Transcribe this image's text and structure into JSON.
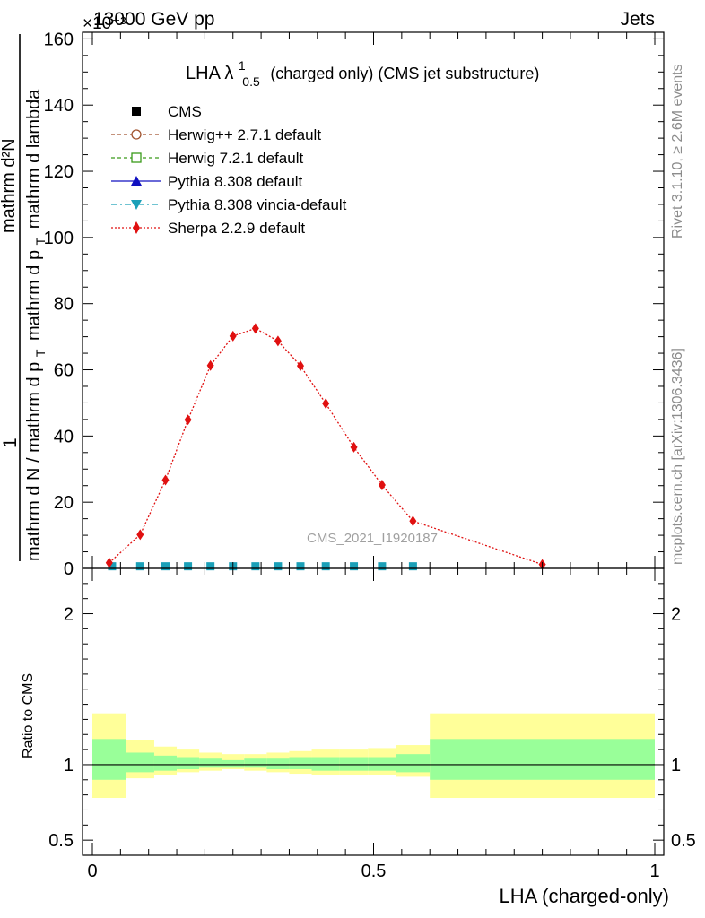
{
  "header": {
    "left_label": "13000 GeV pp",
    "right_label": "Jets",
    "exponent_label": "×10⁻³"
  },
  "side_notes": {
    "rivet": "Rivet 3.1.10, ≥ 2.6M events",
    "mcplots": "mcplots.cern.ch [arXiv:1306.3436]"
  },
  "colors": {
    "cms": "#000000",
    "herwigpp": "#a0522d",
    "herwig7": "#3a9a1a",
    "pythia": "#1010c0",
    "vincia": "#1aa0b8",
    "sherpa": "#e01010",
    "band_inner": "#99ff99",
    "band_outer": "#ffff99"
  },
  "chart_data": [
    {
      "type": "line",
      "title": "LHA λ¹₀.₅ (charged only) (CMS jet substructure)",
      "title_parts": {
        "main": "LHA λ",
        "sup": "1",
        "sub": "0.5",
        "rest": "(charged only) (CMS jet substructure)"
      },
      "watermark": "CMS_2021_I1920187",
      "ylabel": {
        "numerator": "mathrm d²N",
        "denominator_bottom": "mathrm d N / mathrm d p",
        "denominator_top": "mathrm d p",
        "sub_T": "T",
        "denominator_rest": "mathrm d lambda",
        "prefix": "1"
      },
      "xlim": [
        0,
        1
      ],
      "ylim": [
        0,
        0.162
      ],
      "yscale_factor": "1e-3",
      "ytick_values": [
        0,
        20,
        40,
        60,
        80,
        100,
        120,
        140,
        160
      ],
      "grid": false,
      "legend_position": "top-left",
      "series": [
        {
          "name": "CMS",
          "color": "#000000",
          "marker": "square",
          "x": [
            0.035,
            0.085,
            0.13,
            0.17,
            0.21,
            0.25,
            0.29,
            0.33,
            0.37,
            0.415,
            0.465,
            0.515,
            0.57
          ],
          "y": [
            0.0005,
            0.0005,
            0.0005,
            0.0005,
            0.0005,
            0.0005,
            0.0005,
            0.0005,
            0.0005,
            0.0005,
            0.0005,
            0.0005,
            0.0005
          ]
        },
        {
          "name": "Herwig++ 2.7.1 default",
          "color": "#a0522d",
          "marker": "circle-open",
          "x": [
            0.035,
            0.085,
            0.13,
            0.17,
            0.21,
            0.25,
            0.29,
            0.33,
            0.37,
            0.415,
            0.465,
            0.515,
            0.57
          ],
          "y": [
            0.0005,
            0.0005,
            0.0005,
            0.0005,
            0.0005,
            0.0005,
            0.0005,
            0.0005,
            0.0005,
            0.0005,
            0.0005,
            0.0005,
            0.0005
          ]
        },
        {
          "name": "Herwig 7.2.1 default",
          "color": "#3a9a1a",
          "marker": "square-open",
          "x": [
            0.035,
            0.085,
            0.13,
            0.17,
            0.21,
            0.25,
            0.29,
            0.33,
            0.37,
            0.415,
            0.465,
            0.515,
            0.57
          ],
          "y": [
            0.0005,
            0.0005,
            0.0005,
            0.0005,
            0.0005,
            0.0005,
            0.0005,
            0.0005,
            0.0005,
            0.0005,
            0.0005,
            0.0005,
            0.0005
          ]
        },
        {
          "name": "Pythia 8.308 default",
          "color": "#1010c0",
          "marker": "triangle-up",
          "x": [
            0.035,
            0.085,
            0.13,
            0.17,
            0.21,
            0.25,
            0.29,
            0.33,
            0.37,
            0.415,
            0.465,
            0.515,
            0.57
          ],
          "y": [
            0.0005,
            0.0005,
            0.0005,
            0.0005,
            0.0005,
            0.0005,
            0.0005,
            0.0005,
            0.0005,
            0.0005,
            0.0005,
            0.0005,
            0.0005
          ]
        },
        {
          "name": "Pythia 8.308 vincia-default",
          "color": "#1aa0b8",
          "marker": "triangle-down",
          "x": [
            0.035,
            0.085,
            0.13,
            0.17,
            0.21,
            0.25,
            0.29,
            0.33,
            0.37,
            0.415,
            0.465,
            0.515,
            0.57
          ],
          "y": [
            0.0005,
            0.0005,
            0.0005,
            0.0005,
            0.0005,
            0.0005,
            0.0005,
            0.0005,
            0.0005,
            0.0005,
            0.0005,
            0.0005,
            0.0005
          ]
        },
        {
          "name": "Sherpa 2.2.9 default",
          "color": "#e01010",
          "marker": "diamond",
          "x": [
            0.03,
            0.085,
            0.13,
            0.17,
            0.21,
            0.25,
            0.29,
            0.33,
            0.37,
            0.415,
            0.465,
            0.515,
            0.57,
            0.8
          ],
          "y": [
            0.0017,
            0.0102,
            0.0267,
            0.0449,
            0.0613,
            0.0702,
            0.0725,
            0.0687,
            0.0612,
            0.0498,
            0.0366,
            0.0252,
            0.0143,
            0.0012
          ]
        }
      ]
    },
    {
      "type": "area",
      "ylabel": "Ratio to CMS",
      "xlabel": "LHA (charged-only)",
      "xlim": [
        0,
        1
      ],
      "ylim": [
        0.4,
        2.3
      ],
      "ytick_values": [
        0.5,
        1,
        2
      ],
      "xtick_labels": [
        "0",
        "0.5",
        "1"
      ],
      "grid": false,
      "reference_line": 1,
      "bins": [
        {
          "lo": 0.0,
          "hi": 0.06,
          "inner": [
            0.9,
            1.17
          ],
          "outer": [
            0.78,
            1.34
          ]
        },
        {
          "lo": 0.06,
          "hi": 0.11,
          "inner": [
            0.95,
            1.08
          ],
          "outer": [
            0.91,
            1.16
          ]
        },
        {
          "lo": 0.11,
          "hi": 0.15,
          "inner": [
            0.96,
            1.06
          ],
          "outer": [
            0.93,
            1.12
          ]
        },
        {
          "lo": 0.15,
          "hi": 0.19,
          "inner": [
            0.97,
            1.05
          ],
          "outer": [
            0.95,
            1.1
          ]
        },
        {
          "lo": 0.19,
          "hi": 0.23,
          "inner": [
            0.98,
            1.04
          ],
          "outer": [
            0.96,
            1.08
          ]
        },
        {
          "lo": 0.23,
          "hi": 0.27,
          "inner": [
            0.98,
            1.03
          ],
          "outer": [
            0.97,
            1.07
          ]
        },
        {
          "lo": 0.27,
          "hi": 0.31,
          "inner": [
            0.98,
            1.04
          ],
          "outer": [
            0.96,
            1.07
          ]
        },
        {
          "lo": 0.31,
          "hi": 0.35,
          "inner": [
            0.97,
            1.04
          ],
          "outer": [
            0.95,
            1.08
          ]
        },
        {
          "lo": 0.35,
          "hi": 0.39,
          "inner": [
            0.97,
            1.05
          ],
          "outer": [
            0.94,
            1.09
          ]
        },
        {
          "lo": 0.39,
          "hi": 0.44,
          "inner": [
            0.96,
            1.05
          ],
          "outer": [
            0.93,
            1.1
          ]
        },
        {
          "lo": 0.44,
          "hi": 0.49,
          "inner": [
            0.96,
            1.05
          ],
          "outer": [
            0.93,
            1.1
          ]
        },
        {
          "lo": 0.49,
          "hi": 0.54,
          "inner": [
            0.96,
            1.05
          ],
          "outer": [
            0.93,
            1.11
          ]
        },
        {
          "lo": 0.54,
          "hi": 0.6,
          "inner": [
            0.95,
            1.07
          ],
          "outer": [
            0.92,
            1.13
          ]
        },
        {
          "lo": 0.6,
          "hi": 1.0,
          "inner": [
            0.9,
            1.17
          ],
          "outer": [
            0.78,
            1.34
          ]
        }
      ]
    }
  ]
}
